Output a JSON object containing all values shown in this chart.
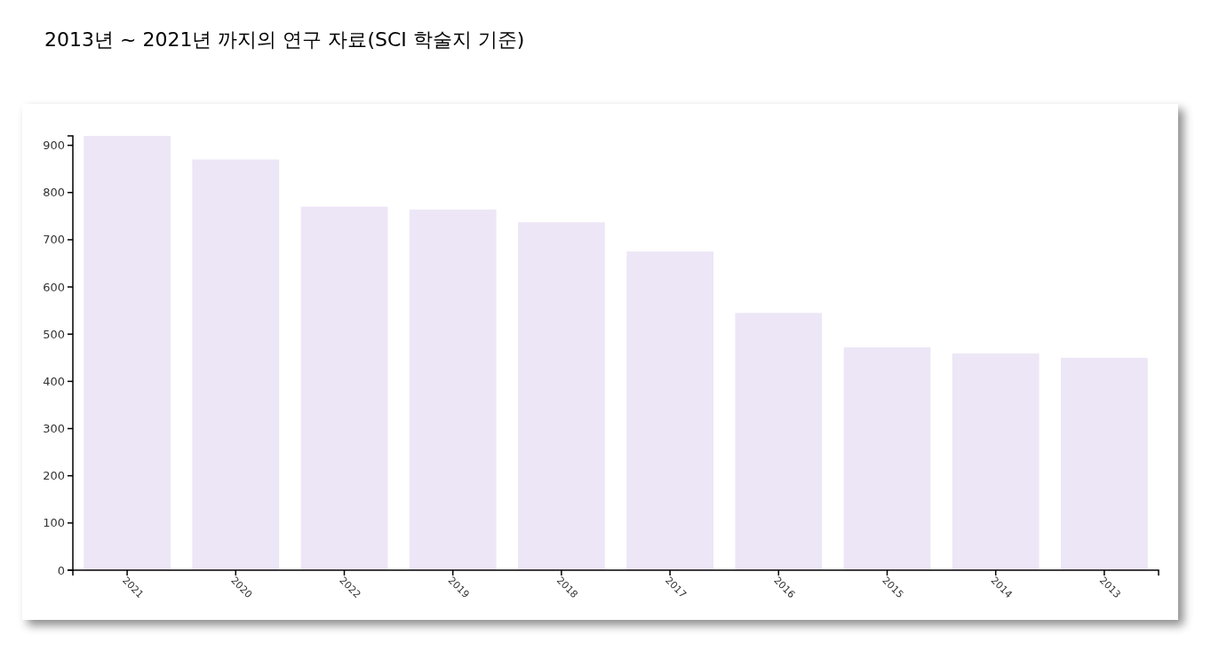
{
  "chart_data": {
    "type": "bar",
    "title": "2013년 ~ 2021년 까지의 연구 자료(SCI 학술지 기준)",
    "categories": [
      "2021",
      "2020",
      "2022",
      "2019",
      "2018",
      "2017",
      "2016",
      "2015",
      "2014",
      "2013"
    ],
    "values": [
      920,
      870,
      770,
      764,
      737,
      675,
      545,
      472,
      459,
      450
    ],
    "color": "#ede6f6",
    "ylim": [
      0,
      920
    ],
    "yticks": [
      0,
      100,
      200,
      300,
      400,
      500,
      600,
      700,
      800,
      900
    ],
    "grid": false
  }
}
